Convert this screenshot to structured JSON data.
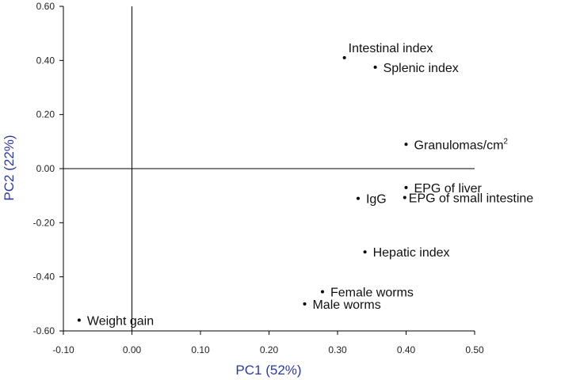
{
  "chart_data": {
    "type": "scatter",
    "title": "",
    "xlabel": "PC1 (52%)",
    "ylabel": "PC2 (22%)",
    "xlim": [
      -0.1,
      0.5
    ],
    "ylim": [
      -0.6,
      0.6
    ],
    "x_ticks": [
      -0.1,
      0.0,
      0.1,
      0.2,
      0.3,
      0.4,
      0.5
    ],
    "x_tick_labels": [
      "-0.10",
      "0.00",
      "0.10",
      "0.20",
      "0.30",
      "0.40",
      "0.50"
    ],
    "y_ticks": [
      0.6,
      0.4,
      0.2,
      0.0,
      -0.2,
      -0.4,
      -0.6
    ],
    "y_tick_labels": [
      "0.60",
      "0.40",
      "0.20",
      "0.00",
      "-0.20",
      "-0.40",
      "-0.60"
    ],
    "points": [
      {
        "label": "Intestinal index",
        "x": 0.31,
        "y": 0.41,
        "anchor": "above-right"
      },
      {
        "label": "Splenic index",
        "x": 0.355,
        "y": 0.375,
        "anchor": "right"
      },
      {
        "label": "Granulomas/cm",
        "sup": "2",
        "x": 0.4,
        "y": 0.09,
        "anchor": "right"
      },
      {
        "label": "EPG of liver",
        "x": 0.4,
        "y": -0.07,
        "anchor": "right"
      },
      {
        "label": "IgG",
        "x": 0.33,
        "y": -0.11,
        "anchor": "right"
      },
      {
        "label": "EPG of small intestine",
        "x": 0.398,
        "y": -0.107,
        "anchor": "right-tight"
      },
      {
        "label": "Hepatic index",
        "x": 0.34,
        "y": -0.308,
        "anchor": "right"
      },
      {
        "label": "Female worms",
        "x": 0.278,
        "y": -0.455,
        "anchor": "right"
      },
      {
        "label": "Male worms",
        "x": 0.252,
        "y": -0.5,
        "anchor": "right"
      },
      {
        "label": "Weight gain",
        "x": -0.077,
        "y": -0.56,
        "anchor": "right"
      }
    ]
  }
}
